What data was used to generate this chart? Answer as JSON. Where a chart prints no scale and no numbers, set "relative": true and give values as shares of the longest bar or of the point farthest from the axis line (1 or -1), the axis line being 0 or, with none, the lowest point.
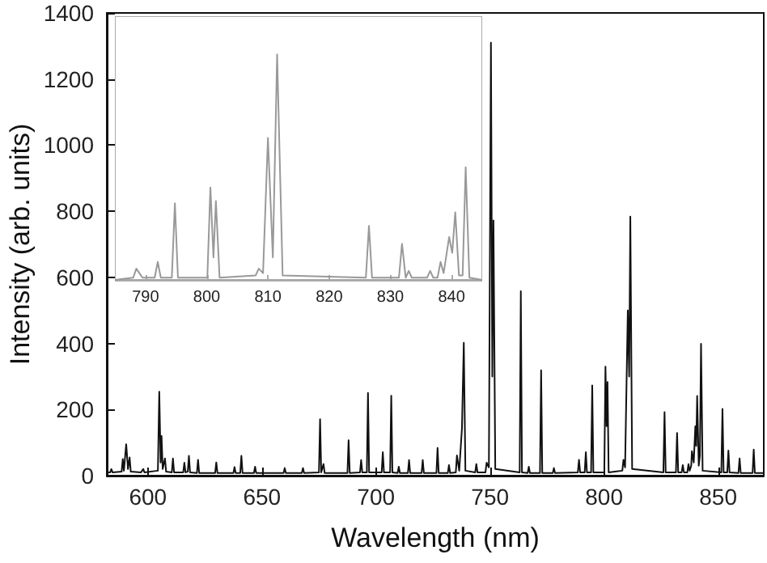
{
  "chart_data": [
    {
      "type": "line",
      "xlabel": "Wavelength (nm)",
      "ylabel": "Intensity (arb. units)",
      "color": "#111111",
      "xlim": [
        582,
        870
      ],
      "xticks": [
        600,
        650,
        700,
        750,
        800,
        850
      ],
      "ylim": [
        0,
        1400
      ],
      "yticks": [
        0,
        200,
        400,
        600,
        800,
        1000,
        1200,
        1400
      ],
      "x": [
        582,
        583.5,
        584,
        584.5,
        588.5,
        589,
        589.5,
        590.5,
        591.3,
        592,
        592.5,
        597,
        598,
        598.5,
        604.4,
        605,
        605.6,
        606,
        606.5,
        607.5,
        608,
        610.5,
        611,
        611.5,
        615.5,
        616,
        616.5,
        617.5,
        618,
        618.5,
        621.5,
        622,
        622.5,
        629.5,
        630,
        630.5,
        637.5,
        638,
        638.5,
        640.5,
        641,
        641.5,
        646.5,
        647,
        647.5,
        659.5,
        660,
        660.5,
        667.5,
        668,
        668.5,
        675,
        675.5,
        676,
        676.5,
        677,
        677.5,
        687.5,
        688,
        688.5,
        693,
        693.5,
        694,
        696,
        696.5,
        697,
        702.5,
        703,
        703.5,
        706.2,
        706.7,
        707.2,
        709.5,
        710,
        710.5,
        714,
        714.5,
        715,
        720,
        720.5,
        721,
        726.5,
        727,
        727.5,
        731.5,
        732,
        732.5,
        735,
        735.5,
        736.5,
        737.7,
        738.5,
        739.2,
        743.5,
        744,
        744.5,
        748,
        748.5,
        749.5,
        750.4,
        751,
        751.5,
        752.3,
        763,
        763.5,
        764,
        766.5,
        767,
        767.5,
        771.9,
        772.4,
        772.9,
        777.5,
        778,
        778.5,
        788.5,
        789,
        789.5,
        791.5,
        792,
        792.5,
        794.3,
        794.8,
        795.3,
        800.1,
        800.6,
        801.1,
        801.5,
        802,
        808,
        808.5,
        809.2,
        810.4,
        811,
        811.5,
        812.3,
        826,
        826.5,
        827,
        831.5,
        832,
        832.5,
        834,
        834.5,
        835,
        836.5,
        837,
        837.5,
        838.2,
        838.5,
        839.3,
        840,
        840.4,
        840.8,
        841.5,
        842,
        842.5,
        843.2,
        851.4,
        851.9,
        852.4,
        854,
        854.5,
        855,
        858.9,
        859.4,
        859.9,
        865.1,
        865.6,
        866.1,
        870
      ],
      "values": [
        10,
        10,
        20,
        10,
        12,
        50,
        15,
        95,
        20,
        55,
        12,
        10,
        20,
        10,
        15,
        254,
        40,
        120,
        20,
        52,
        12,
        10,
        52,
        10,
        10,
        39,
        10,
        12,
        60,
        10,
        8,
        48,
        8,
        8,
        40,
        8,
        8,
        26,
        8,
        8,
        60,
        8,
        8,
        27,
        8,
        8,
        23,
        8,
        8,
        23,
        8,
        10,
        171,
        10,
        10,
        35,
        8,
        8,
        107,
        8,
        10,
        47,
        10,
        10,
        250,
        10,
        10,
        71,
        10,
        10,
        242,
        10,
        8,
        27,
        8,
        8,
        47,
        8,
        8,
        47,
        8,
        8,
        84,
        8,
        8,
        32,
        8,
        10,
        61,
        15,
        144,
        402,
        15,
        10,
        35,
        10,
        10,
        39,
        25,
        1310,
        300,
        772,
        20,
        10,
        558,
        10,
        8,
        27,
        8,
        8,
        319,
        8,
        8,
        23,
        8,
        10,
        48,
        10,
        10,
        71,
        10,
        10,
        273,
        10,
        10,
        330,
        150,
        283,
        10,
        15,
        48,
        25,
        500,
        300,
        784,
        20,
        10,
        192,
        10,
        10,
        129,
        10,
        10,
        32,
        10,
        10,
        35,
        15,
        30,
        74,
        40,
        149,
        90,
        241,
        30,
        60,
        399,
        15,
        10,
        202,
        10,
        10,
        76,
        10,
        8,
        52,
        8,
        8,
        79,
        8,
        8
      ]
    },
    {
      "type": "line",
      "relative": true,
      "color": "#999999",
      "xlim": [
        785,
        845
      ],
      "xticks": [
        790,
        800,
        810,
        820,
        830,
        840
      ],
      "tick_labels": "x",
      "x": [
        785,
        788,
        788.5,
        789,
        789.5,
        791.5,
        792,
        792.5,
        794.3,
        794.8,
        795.3,
        800.1,
        800.6,
        801.1,
        801.5,
        802.1,
        808,
        808.5,
        809.2,
        810,
        810.8,
        811.5,
        812.4,
        826,
        826.5,
        827,
        831.4,
        831.9,
        832.5,
        833,
        833.5,
        836,
        836.5,
        837,
        837.7,
        838.2,
        838.7,
        839.6,
        840.1,
        840.6,
        841.2,
        841.8,
        842.3,
        842.9,
        845
      ],
      "values": [
        0,
        0.01,
        0.05,
        0.03,
        0.01,
        0.01,
        0.08,
        0.01,
        0.01,
        0.34,
        0.01,
        0.01,
        0.41,
        0.1,
        0.35,
        0.01,
        0.02,
        0.05,
        0.03,
        0.63,
        0.1,
        1,
        0.02,
        0.01,
        0.24,
        0.01,
        0.01,
        0.16,
        0.01,
        0.04,
        0.01,
        0.01,
        0.04,
        0.01,
        0.01,
        0.08,
        0.03,
        0.19,
        0.12,
        0.3,
        0.02,
        0.02,
        0.5,
        0.01,
        0
      ]
    }
  ]
}
